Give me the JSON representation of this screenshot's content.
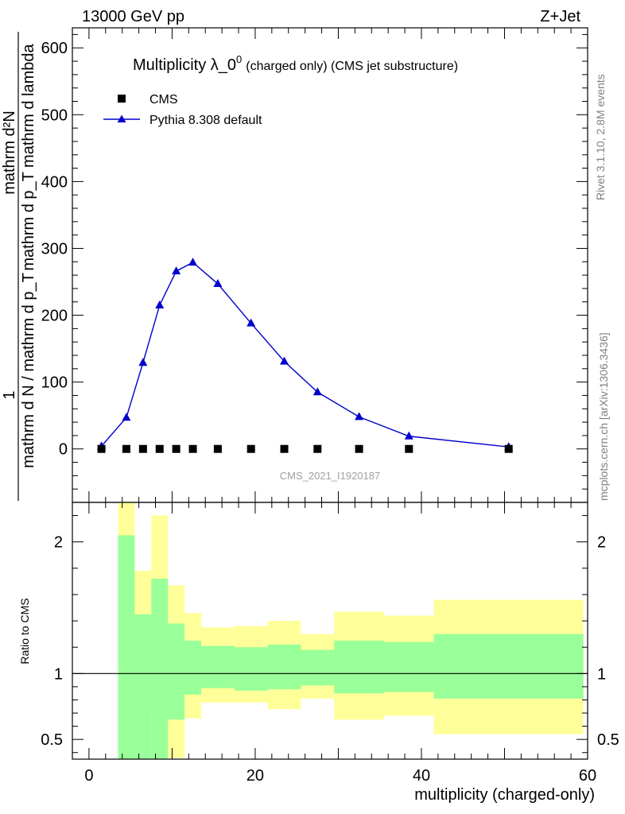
{
  "header": {
    "energy_label": "13000 GeV pp",
    "process_label": "Z+Jet"
  },
  "side_labels": {
    "rivet": "Rivet 3.1.10,  2.8M events",
    "mcplots": "mcplots.cern.ch [arXiv:1306.3436]"
  },
  "chart_data": [
    {
      "type": "scatter",
      "title": "Multiplicity λ_0",
      "title_superscript": "0",
      "subtitle": "(charged only) (CMS jet substructure)",
      "ylabel_numerator": "1",
      "ylabel_denominator": "mathrm d N / mathrm d p_T",
      "ylabel_numerator_right": "mathrm d²N",
      "ylabel_denominator_right": "mathrm d p_T mathrm d lambda",
      "ylabel_full": "1 / (mathrm d N / mathrm d p_T) · mathrm d²N / (mathrm d p_T mathrm d lambda)",
      "watermark": "CMS_2021_I1920187",
      "xlim": [
        -2,
        60
      ],
      "ylim": [
        -80,
        630
      ],
      "y_ticks": [
        0,
        100,
        200,
        300,
        400,
        500,
        600
      ],
      "x_ticks": [
        0,
        20,
        40,
        60
      ],
      "legend_position": "top-left",
      "series": [
        {
          "name": "CMS",
          "marker": "square",
          "color": "#000000",
          "x": [
            1.5,
            4.5,
            6.5,
            8.5,
            10.5,
            12.5,
            15.5,
            19.5,
            23.5,
            27.5,
            32.5,
            38.5,
            50.5
          ],
          "y": [
            0,
            0,
            0,
            0,
            0,
            0,
            0,
            0,
            0,
            0,
            0,
            0,
            0
          ]
        },
        {
          "name": "Pythia 8.308 default",
          "marker": "triangle",
          "color": "#0000cc",
          "x": [
            1.5,
            4.5,
            6.5,
            8.5,
            10.5,
            12.5,
            15.5,
            19.5,
            23.5,
            27.5,
            32.5,
            38.5,
            50.5
          ],
          "y": [
            4,
            47,
            129,
            215,
            266,
            279,
            247,
            188,
            131,
            85,
            48,
            19,
            3
          ]
        }
      ]
    },
    {
      "type": "area",
      "ylabel": "Ratio to CMS",
      "xlabel": "multiplicity (charged-only)",
      "xlim": [
        -2,
        60
      ],
      "ylim": [
        0.35,
        2.3
      ],
      "y_ticks": [
        0.5,
        1,
        2
      ],
      "y_tick_labels": [
        "0.5",
        "1",
        "2"
      ],
      "x_ticks": [
        0,
        20,
        40,
        60
      ],
      "reference_line": 1,
      "bands": {
        "bin_edges": [
          3.5,
          5.5,
          7.5,
          9.5,
          11.5,
          13.5,
          17.5,
          21.5,
          25.5,
          29.5,
          35.5,
          41.5,
          59.5
        ],
        "inner_color": "#99ff99",
        "outer_color": "#ffff99",
        "inner_hi": [
          2.05,
          1.45,
          1.72,
          1.38,
          1.25,
          1.21,
          1.2,
          1.22,
          1.18,
          1.25,
          1.24,
          1.3,
          1.38
        ],
        "inner_lo": [
          0.3,
          0.3,
          0.3,
          0.65,
          0.84,
          0.89,
          0.87,
          0.88,
          0.91,
          0.85,
          0.86,
          0.81,
          0.74
        ],
        "outer_hi": [
          2.3,
          1.78,
          2.2,
          1.67,
          1.46,
          1.35,
          1.36,
          1.4,
          1.3,
          1.47,
          1.44,
          1.56,
          1.67
        ],
        "outer_lo": [
          0.3,
          0.68,
          0.3,
          0.36,
          0.66,
          0.78,
          0.78,
          0.73,
          0.81,
          0.65,
          0.68,
          0.54,
          0.3
        ]
      }
    }
  ]
}
